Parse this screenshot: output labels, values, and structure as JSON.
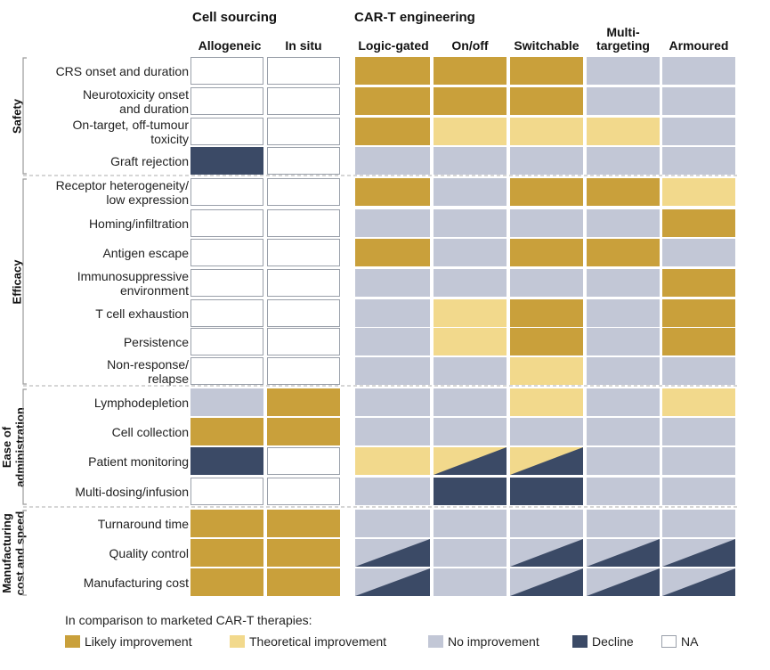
{
  "headers": {
    "cell_sourcing": "Cell sourcing",
    "car_t_engineering": "CAR-T engineering"
  },
  "columns": [
    "Allogeneic",
    "In situ",
    "Logic-gated",
    "On/off",
    "Switchable",
    "Multi-\ntargeting",
    "Armoured"
  ],
  "categories": [
    {
      "label": "Safety",
      "lines": [
        "Safety"
      ]
    },
    {
      "label": "Efficacy",
      "lines": [
        "Efficacy"
      ]
    },
    {
      "label": "Ease of administration",
      "lines": [
        "Ease of",
        "administration"
      ]
    },
    {
      "label": "Manufacturing cost and speed",
      "lines": [
        "Manufacturing",
        "cost and speed"
      ]
    }
  ],
  "rows": [
    {
      "label": "CRS onset and duration",
      "cells": [
        "NA",
        "NA",
        "L",
        "L",
        "L",
        "N",
        "N"
      ]
    },
    {
      "label": "Neurotoxicity onset\nand duration",
      "cells": [
        "NA",
        "NA",
        "L",
        "L",
        "L",
        "N",
        "N"
      ]
    },
    {
      "label": "On-target, off-tumour\ntoxicity",
      "cells": [
        "NA",
        "NA",
        "L",
        "T",
        "T",
        "T",
        "N"
      ]
    },
    {
      "label": "Graft rejection",
      "cells": [
        "D",
        "NA",
        "N",
        "N",
        "N",
        "N",
        "N"
      ]
    },
    {
      "label": "Receptor heterogeneity/\nlow expression",
      "cells": [
        "NA",
        "NA",
        "L",
        "N",
        "L",
        "L",
        "T"
      ]
    },
    {
      "label": "Homing/infiltration",
      "cells": [
        "NA",
        "NA",
        "N",
        "N",
        "N",
        "N",
        "L"
      ]
    },
    {
      "label": "Antigen escape",
      "cells": [
        "NA",
        "NA",
        "L",
        "N",
        "L",
        "L",
        "N"
      ]
    },
    {
      "label": "Immunosuppressive\nenvironment",
      "cells": [
        "NA",
        "NA",
        "N",
        "N",
        "N",
        "N",
        "L"
      ]
    },
    {
      "label": "T cell exhaustion",
      "cells": [
        "NA",
        "NA",
        "N",
        "T",
        "L",
        "N",
        "L"
      ]
    },
    {
      "label": "Persistence",
      "cells": [
        "NA",
        "NA",
        "N",
        "T",
        "L",
        "N",
        "L"
      ]
    },
    {
      "label": "Non-response/\nrelapse",
      "cells": [
        "NA",
        "NA",
        "N",
        "N",
        "T",
        "N",
        "N"
      ]
    },
    {
      "label": "Lymphodepletion",
      "cells": [
        "N",
        "L",
        "N",
        "N",
        "T",
        "N",
        "T"
      ]
    },
    {
      "label": "Cell collection",
      "cells": [
        "L",
        "L",
        "N",
        "N",
        "N",
        "N",
        "N"
      ]
    },
    {
      "label": "Patient monitoring",
      "cells": [
        "D",
        "NA",
        "T",
        "T/D",
        "T/D",
        "N",
        "N"
      ]
    },
    {
      "label": "Multi-dosing/infusion",
      "cells": [
        "NA",
        "NA",
        "N",
        "D",
        "D",
        "N",
        "N"
      ]
    },
    {
      "label": "Turnaround time",
      "cells": [
        "L",
        "L",
        "N",
        "N",
        "N",
        "N",
        "N"
      ]
    },
    {
      "label": "Quality control",
      "cells": [
        "L",
        "L",
        "N/D",
        "N",
        "N/D",
        "N/D",
        "N/D"
      ]
    },
    {
      "label": "Manufacturing cost",
      "cells": [
        "L",
        "L",
        "N/D",
        "N",
        "N/D",
        "N/D",
        "N/D"
      ]
    }
  ],
  "legend": {
    "intro": "In comparison to marketed CAR-T therapies:",
    "items": [
      {
        "key": "L",
        "label": "Likely improvement"
      },
      {
        "key": "T",
        "label": "Theoretical improvement"
      },
      {
        "key": "N",
        "label": "No improvement"
      },
      {
        "key": "D",
        "label": "Decline"
      },
      {
        "key": "NA",
        "label": "NA"
      }
    ]
  },
  "colors": {
    "L": "#c9a03b",
    "T": "#f2d98c",
    "N": "#c2c7d6",
    "D": "#3b4a66",
    "NA": "#ffffff",
    "border": "#9aa0aa",
    "divider": "#bdbdbd"
  }
}
